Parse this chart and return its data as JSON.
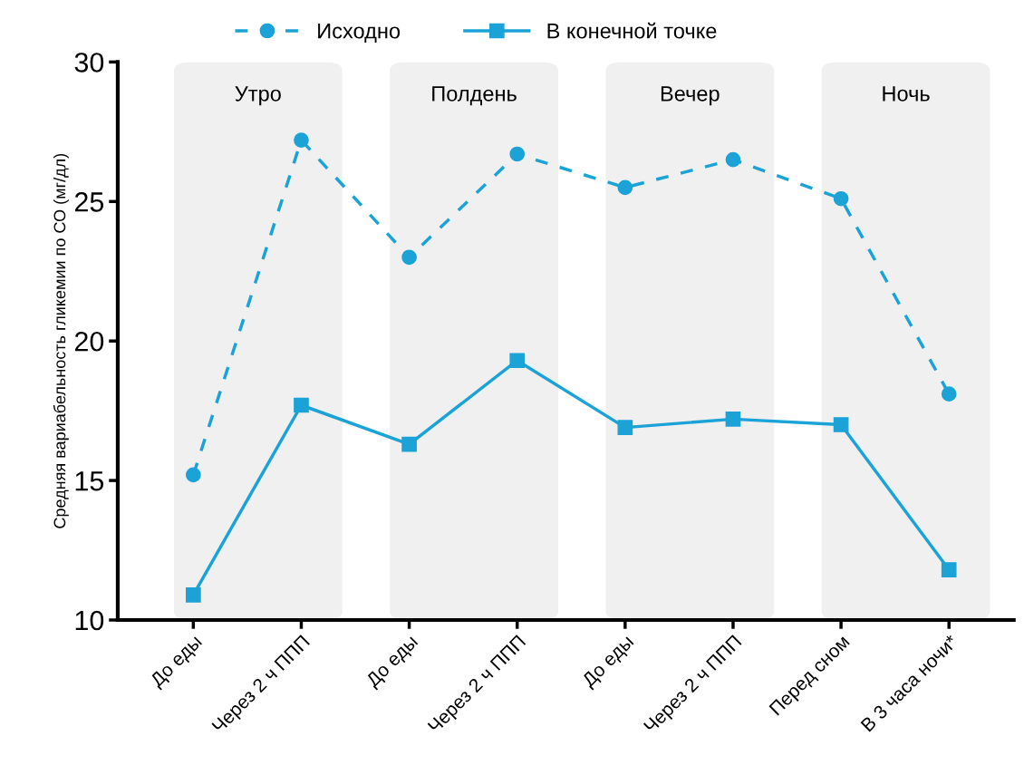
{
  "chart_data": {
    "type": "line",
    "ylabel": "Средняя вариабельность гликемии по СО (мг/дл)",
    "categories": [
      "До еды",
      "Через 2 ч ППП",
      "До еды",
      "Через 2 ч ППП",
      "До еды",
      "Через 2 ч ППП",
      "Перед сном",
      "В 3 часа ночи*"
    ],
    "series": [
      {
        "name": "Исходно",
        "color": "#1ba3d8",
        "marker": "circle",
        "line_style": "dashed",
        "values": [
          15.2,
          27.2,
          23.0,
          26.7,
          25.5,
          26.5,
          25.1,
          18.1
        ]
      },
      {
        "name": "В конечной точке",
        "color": "#1ba3d8",
        "marker": "square",
        "line_style": "solid",
        "values": [
          10.9,
          17.7,
          16.3,
          19.3,
          16.9,
          17.2,
          17.0,
          11.8
        ]
      }
    ],
    "ylim": [
      10,
      30
    ],
    "yticks": [
      10,
      15,
      20,
      25,
      30
    ],
    "grid": false,
    "legend": "top",
    "annotations": [
      "Утро",
      "Полдень",
      "Вечер",
      "Ночь"
    ]
  }
}
